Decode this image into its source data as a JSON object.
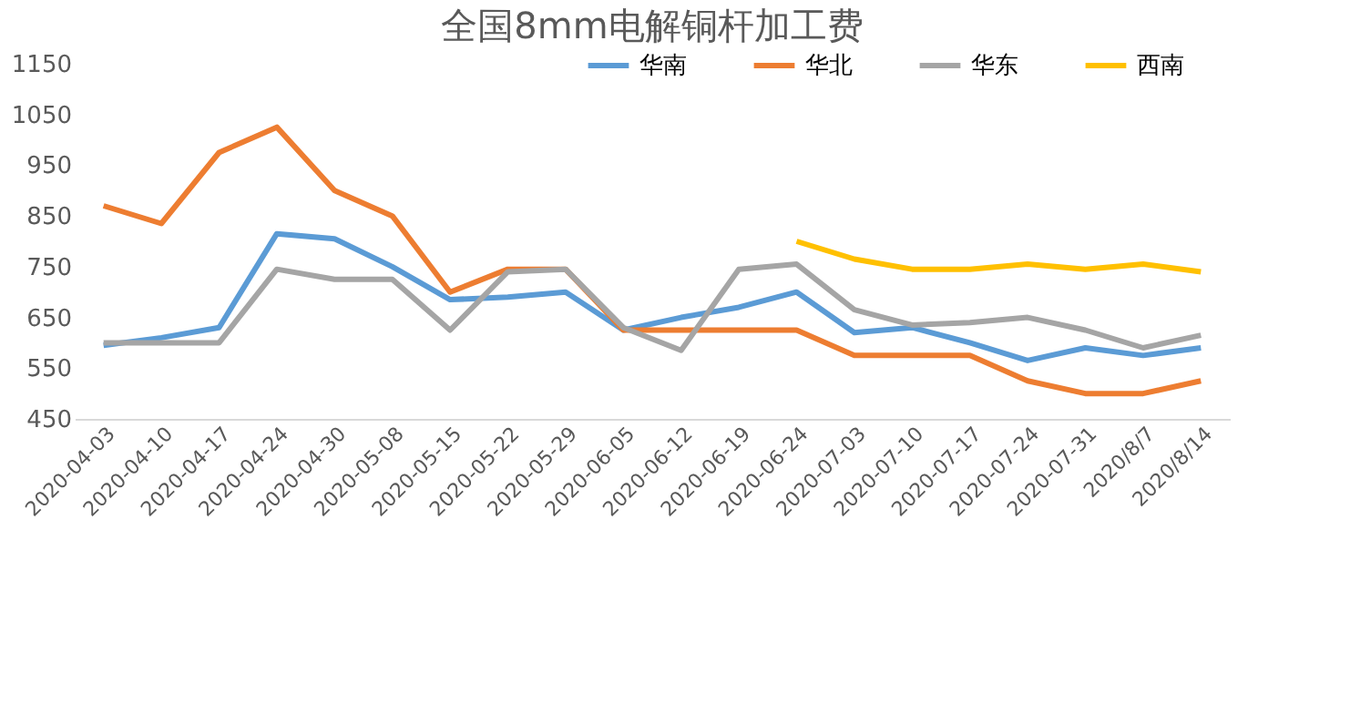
{
  "chart_data": {
    "type": "line",
    "title": "全国8mm电解铜杆加工费",
    "categories": [
      "2020-04-03",
      "2020-04-10",
      "2020-04-17",
      "2020-04-24",
      "2020-04-30",
      "2020-05-08",
      "2020-05-15",
      "2020-05-22",
      "2020-05-29",
      "2020-06-05",
      "2020-06-12",
      "2020-06-19",
      "2020-06-24",
      "2020-07-03",
      "2020-07-10",
      "2020-07-17",
      "2020-07-24",
      "2020-07-31",
      "2020/8/7",
      "2020/8/14"
    ],
    "series": [
      {
        "name": "华南",
        "color": "#5b9bd5",
        "values": [
          595,
          610,
          630,
          815,
          805,
          750,
          685,
          690,
          700,
          625,
          650,
          670,
          700,
          620,
          630,
          600,
          565,
          590,
          575,
          590
        ]
      },
      {
        "name": "华北",
        "color": "#ed7d31",
        "values": [
          870,
          835,
          975,
          1025,
          900,
          850,
          700,
          745,
          745,
          625,
          625,
          625,
          625,
          575,
          575,
          575,
          525,
          500,
          500,
          525
        ]
      },
      {
        "name": "华东",
        "color": "#a5a5a5",
        "values": [
          600,
          600,
          600,
          745,
          725,
          725,
          625,
          740,
          745,
          630,
          585,
          745,
          755,
          665,
          635,
          640,
          650,
          625,
          590,
          615
        ]
      },
      {
        "name": "西南",
        "color": "#ffc000",
        "values": [
          null,
          null,
          null,
          null,
          null,
          null,
          null,
          null,
          null,
          null,
          null,
          null,
          800,
          765,
          745,
          745,
          755,
          745,
          755,
          740
        ]
      }
    ],
    "ylim": [
      450,
      1150
    ],
    "yticks": [
      450,
      550,
      650,
      750,
      850,
      950,
      1050,
      1150
    ],
    "grid": false,
    "legend": "top right",
    "marker": "none",
    "line_style": "solid"
  }
}
